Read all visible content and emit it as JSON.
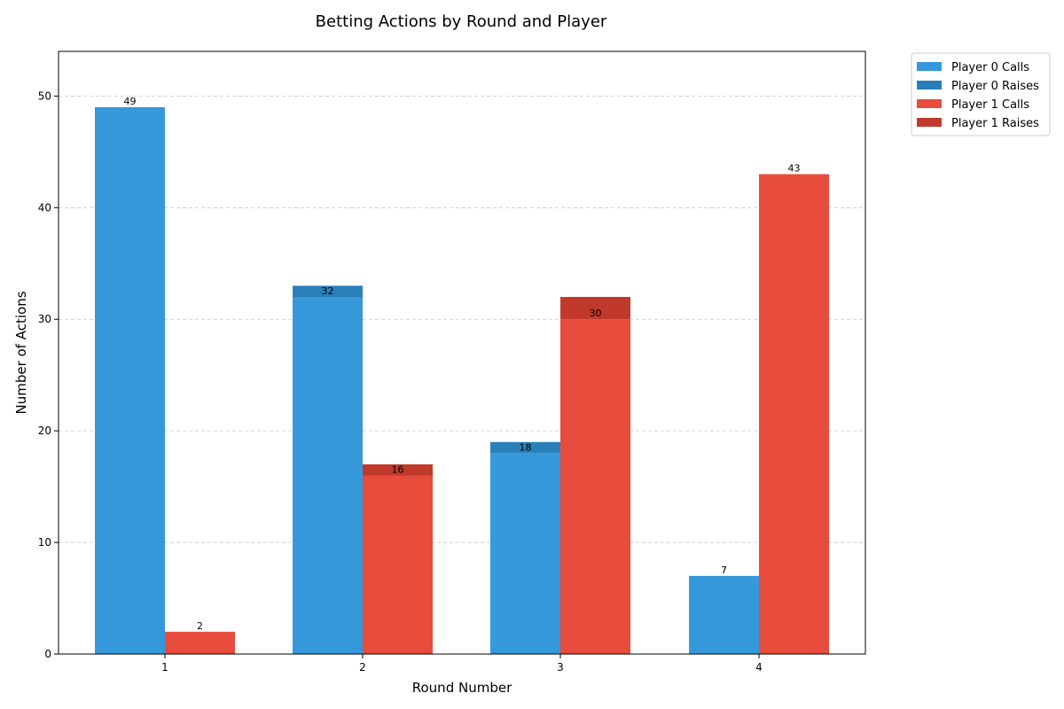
{
  "chart_data": {
    "type": "bar",
    "title": "Betting Actions by Round and Player",
    "xlabel": "Round Number",
    "ylabel": "Number of Actions",
    "categories": [
      "1",
      "2",
      "3",
      "4"
    ],
    "ylim": [
      0,
      54
    ],
    "yticks": [
      0,
      10,
      20,
      30,
      40,
      50
    ],
    "grid": "y-dashed",
    "legend_position": "outside-top-right",
    "series": [
      {
        "name": "Player 0 Calls",
        "player": 0,
        "kind": "calls",
        "color": "#3498db",
        "values": [
          49,
          32,
          18,
          7
        ]
      },
      {
        "name": "Player 0 Raises",
        "player": 0,
        "kind": "raises",
        "color": "#2980b9",
        "values": [
          0,
          1,
          1,
          0
        ]
      },
      {
        "name": "Player 1 Calls",
        "player": 1,
        "kind": "calls",
        "color": "#e74c3c",
        "values": [
          2,
          16,
          30,
          43
        ]
      },
      {
        "name": "Player 1 Raises",
        "player": 1,
        "kind": "raises",
        "color": "#c0392b",
        "values": [
          0,
          1,
          2,
          0
        ]
      }
    ],
    "data_labels": {
      "player0": [
        "49",
        "32",
        "18",
        "7"
      ],
      "player1": [
        "2",
        "16",
        "30",
        "43"
      ]
    }
  }
}
